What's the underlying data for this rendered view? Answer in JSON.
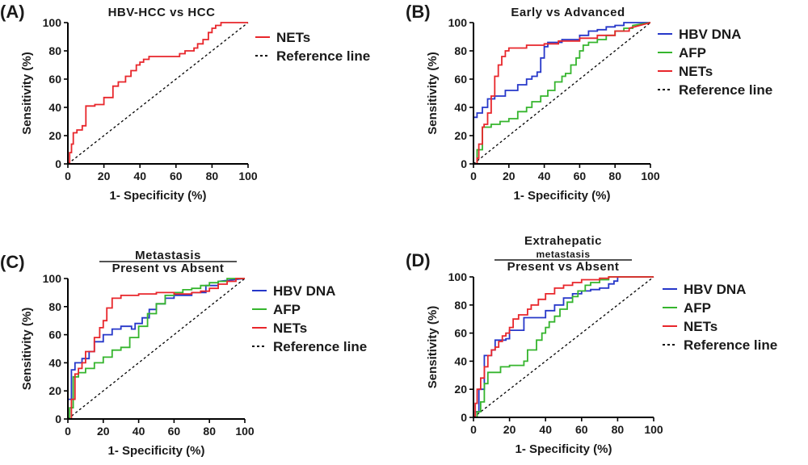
{
  "figure": {
    "colors": {
      "NETs": "#e8262b",
      "HBV DNA": "#2637c9",
      "AFP": "#35b52d",
      "Reference line": "#000000",
      "axis": "#000000"
    },
    "reference_line_name": "Reference line"
  },
  "chart_data": [
    {
      "panel_label": "(A)",
      "type": "line",
      "title": "HBV-HCC vs HCC",
      "title_lines": [
        "HBV-HCC vs HCC"
      ],
      "xlabel": "1- Specificity (%)",
      "ylabel": "Sensitivity (%)",
      "xlim": [
        0,
        100
      ],
      "ylim": [
        0,
        100
      ],
      "xticks": [
        0,
        20,
        40,
        60,
        80,
        100
      ],
      "yticks": [
        0,
        20,
        40,
        60,
        80,
        100
      ],
      "grid": false,
      "legend_position": "right",
      "series": [
        {
          "name": "NETs",
          "x": [
            0,
            1,
            1,
            2,
            2,
            3,
            3,
            5,
            5,
            8,
            8,
            10,
            10,
            15,
            15,
            20,
            20,
            25,
            25,
            28,
            28,
            32,
            32,
            35,
            35,
            38,
            38,
            40,
            40,
            42,
            42,
            45,
            45,
            50,
            55,
            60,
            62,
            62,
            65,
            65,
            70,
            70,
            72,
            72,
            75,
            75,
            78,
            78,
            80,
            80,
            82,
            82,
            85,
            85,
            100
          ],
          "y": [
            0,
            0,
            8,
            8,
            14,
            14,
            22,
            22,
            24,
            24,
            27,
            27,
            41,
            41,
            42,
            42,
            47,
            47,
            55,
            55,
            58,
            58,
            62,
            62,
            66,
            66,
            70,
            70,
            72,
            72,
            74,
            74,
            76,
            76,
            76,
            76,
            76,
            78,
            78,
            80,
            80,
            82,
            82,
            85,
            85,
            88,
            88,
            93,
            93,
            96,
            96,
            98,
            98,
            100,
            100
          ]
        }
      ]
    },
    {
      "panel_label": "(B)",
      "type": "line",
      "title": "Early vs Advanced",
      "title_lines": [
        "Early vs Advanced"
      ],
      "xlabel": "1- Specificity (%)",
      "ylabel": "Sensitivity (%)",
      "xlim": [
        0,
        100
      ],
      "ylim": [
        0,
        100
      ],
      "xticks": [
        0,
        20,
        40,
        60,
        80,
        100
      ],
      "yticks": [
        0,
        20,
        40,
        60,
        80,
        100
      ],
      "grid": false,
      "legend_position": "right",
      "series": [
        {
          "name": "HBV DNA",
          "x": [
            0,
            0,
            2,
            2,
            5,
            5,
            8,
            8,
            12,
            12,
            18,
            18,
            25,
            25,
            30,
            30,
            33,
            33,
            36,
            36,
            38,
            38,
            40,
            40,
            42,
            42,
            50,
            50,
            60,
            60,
            65,
            65,
            70,
            70,
            75,
            75,
            80,
            80,
            85,
            85,
            100
          ],
          "y": [
            0,
            33,
            33,
            36,
            36,
            40,
            40,
            46,
            46,
            48,
            48,
            52,
            52,
            56,
            56,
            60,
            60,
            62,
            62,
            65,
            65,
            75,
            75,
            83,
            83,
            86,
            86,
            88,
            88,
            91,
            91,
            94,
            94,
            95,
            95,
            97,
            97,
            98,
            98,
            100,
            100
          ]
        },
        {
          "name": "AFP",
          "x": [
            0,
            2,
            2,
            5,
            5,
            10,
            10,
            15,
            15,
            20,
            20,
            25,
            25,
            30,
            30,
            33,
            33,
            38,
            38,
            42,
            42,
            46,
            46,
            50,
            50,
            52,
            52,
            55,
            55,
            58,
            58,
            60,
            60,
            62,
            62,
            65,
            65,
            70,
            70,
            75,
            75,
            80,
            80,
            85,
            85,
            90,
            90,
            100
          ],
          "y": [
            0,
            0,
            10,
            10,
            26,
            26,
            28,
            28,
            30,
            30,
            32,
            32,
            37,
            37,
            40,
            40,
            44,
            44,
            48,
            48,
            52,
            52,
            58,
            58,
            62,
            62,
            64,
            64,
            70,
            70,
            75,
            75,
            80,
            80,
            84,
            84,
            86,
            86,
            88,
            88,
            91,
            91,
            94,
            94,
            96,
            96,
            98,
            100
          ]
        },
        {
          "name": "NETs",
          "x": [
            0,
            2,
            2,
            3,
            3,
            5,
            5,
            6,
            6,
            8,
            8,
            10,
            10,
            12,
            12,
            14,
            14,
            16,
            16,
            18,
            18,
            20,
            20,
            30,
            30,
            40,
            40,
            48,
            48,
            60,
            60,
            70,
            70,
            80,
            80,
            88,
            88,
            100
          ],
          "y": [
            0,
            0,
            4,
            4,
            14,
            14,
            26,
            26,
            28,
            28,
            36,
            36,
            48,
            48,
            62,
            62,
            70,
            70,
            76,
            76,
            80,
            80,
            82,
            82,
            84,
            84,
            85,
            85,
            87,
            87,
            89,
            89,
            91,
            91,
            94,
            94,
            96,
            100
          ]
        }
      ]
    },
    {
      "panel_label": "(C)",
      "type": "line",
      "title": "Metastasis Present vs Absent",
      "title_lines": [
        "Metastasis",
        "Present vs Absent"
      ],
      "xlabel": "1- Specificity (%)",
      "ylabel": "Sensitivity (%)",
      "xlim": [
        0,
        100
      ],
      "ylim": [
        0,
        100
      ],
      "xticks": [
        0,
        20,
        40,
        60,
        80,
        100
      ],
      "yticks": [
        0,
        20,
        40,
        60,
        80,
        100
      ],
      "grid": false,
      "legend_position": "right",
      "series": [
        {
          "name": "HBV DNA",
          "x": [
            0,
            0,
            2,
            2,
            4,
            4,
            8,
            8,
            12,
            12,
            15,
            15,
            20,
            20,
            25,
            25,
            30,
            30,
            36,
            36,
            38,
            38,
            42,
            42,
            46,
            46,
            50,
            50,
            55,
            55,
            60,
            60,
            70,
            70,
            78,
            78,
            85,
            85,
            100
          ],
          "y": [
            0,
            14,
            14,
            35,
            35,
            40,
            40,
            43,
            43,
            48,
            48,
            55,
            55,
            60,
            60,
            64,
            64,
            66,
            66,
            64,
            64,
            68,
            68,
            72,
            72,
            78,
            78,
            82,
            82,
            86,
            86,
            88,
            88,
            90,
            90,
            95,
            95,
            98,
            100
          ]
        },
        {
          "name": "AFP",
          "x": [
            0,
            1,
            1,
            3,
            3,
            6,
            6,
            10,
            10,
            15,
            15,
            20,
            20,
            25,
            25,
            30,
            30,
            35,
            35,
            40,
            40,
            45,
            45,
            50,
            50,
            55,
            55,
            60,
            60,
            65,
            65,
            70,
            70,
            75,
            75,
            80,
            80,
            85,
            85,
            90,
            90,
            100
          ],
          "y": [
            0,
            0,
            8,
            8,
            30,
            30,
            33,
            33,
            36,
            36,
            40,
            40,
            44,
            44,
            49,
            49,
            51,
            51,
            58,
            58,
            66,
            66,
            75,
            75,
            82,
            82,
            88,
            88,
            90,
            90,
            92,
            92,
            93,
            93,
            95,
            95,
            97,
            97,
            98,
            98,
            100,
            100
          ]
        },
        {
          "name": "NETs",
          "x": [
            0,
            2,
            2,
            4,
            4,
            6,
            6,
            8,
            8,
            10,
            10,
            15,
            15,
            18,
            18,
            20,
            20,
            22,
            22,
            25,
            25,
            30,
            30,
            40,
            40,
            50,
            50,
            60,
            60,
            70,
            70,
            75,
            75,
            80,
            80,
            85,
            85,
            90,
            90,
            95,
            95,
            100
          ],
          "y": [
            0,
            0,
            14,
            14,
            32,
            32,
            36,
            36,
            40,
            40,
            48,
            48,
            58,
            58,
            65,
            65,
            70,
            70,
            79,
            79,
            86,
            86,
            88,
            88,
            89,
            89,
            90,
            90,
            89,
            89,
            90,
            90,
            91,
            91,
            93,
            93,
            96,
            96,
            98,
            98,
            100,
            100
          ]
        }
      ]
    },
    {
      "panel_label": "(D)",
      "type": "line",
      "title": "Extrahepatic metastasis Present vs Absent",
      "title_lines": [
        "Extrahepatic",
        "metastasis",
        "Present vs Absent"
      ],
      "xlabel": "1- Specificity (%)",
      "ylabel": "Sensitivity (%)",
      "xlim": [
        0,
        100
      ],
      "ylim": [
        0,
        100
      ],
      "xticks": [
        0,
        20,
        40,
        60,
        80,
        100
      ],
      "yticks": [
        0,
        20,
        40,
        60,
        80,
        100
      ],
      "grid": false,
      "legend_position": "right",
      "series": [
        {
          "name": "HBV DNA",
          "x": [
            0,
            1,
            1,
            3,
            3,
            6,
            6,
            10,
            10,
            12,
            12,
            18,
            18,
            20,
            20,
            28,
            28,
            40,
            40,
            45,
            45,
            50,
            50,
            55,
            55,
            60,
            60,
            65,
            65,
            70,
            70,
            75,
            75,
            78,
            78,
            80,
            80,
            100
          ],
          "y": [
            0,
            0,
            4,
            4,
            20,
            20,
            44,
            44,
            48,
            48,
            55,
            55,
            56,
            56,
            62,
            62,
            71,
            71,
            76,
            76,
            80,
            80,
            85,
            85,
            88,
            88,
            90,
            90,
            91,
            91,
            92,
            92,
            95,
            95,
            97,
            97,
            100,
            100
          ]
        },
        {
          "name": "AFP",
          "x": [
            0,
            2,
            2,
            4,
            4,
            6,
            6,
            8,
            8,
            15,
            15,
            20,
            20,
            28,
            28,
            30,
            30,
            35,
            35,
            38,
            38,
            40,
            40,
            42,
            42,
            45,
            45,
            48,
            48,
            52,
            52,
            55,
            55,
            58,
            58,
            62,
            62,
            65,
            65,
            70,
            70,
            75,
            75,
            100
          ],
          "y": [
            0,
            0,
            4,
            4,
            11,
            11,
            24,
            24,
            32,
            32,
            36,
            36,
            37,
            37,
            40,
            40,
            48,
            48,
            55,
            55,
            60,
            60,
            64,
            64,
            68,
            68,
            72,
            72,
            77,
            77,
            82,
            82,
            86,
            86,
            90,
            90,
            94,
            94,
            96,
            96,
            98,
            98,
            100,
            100
          ]
        },
        {
          "name": "NETs",
          "x": [
            0,
            1,
            1,
            2,
            2,
            4,
            4,
            6,
            6,
            8,
            8,
            10,
            10,
            12,
            12,
            14,
            14,
            16,
            16,
            18,
            18,
            20,
            20,
            22,
            22,
            25,
            25,
            30,
            30,
            32,
            32,
            36,
            36,
            40,
            40,
            45,
            45,
            50,
            50,
            55,
            55,
            60,
            60,
            70,
            70,
            75,
            75,
            100
          ],
          "y": [
            0,
            0,
            10,
            10,
            20,
            20,
            28,
            28,
            36,
            36,
            44,
            44,
            48,
            48,
            50,
            50,
            54,
            54,
            58,
            58,
            60,
            60,
            64,
            64,
            70,
            70,
            73,
            73,
            77,
            77,
            80,
            80,
            84,
            84,
            88,
            88,
            92,
            92,
            94,
            94,
            96,
            96,
            98,
            98,
            99,
            99,
            100,
            100
          ]
        }
      ]
    }
  ]
}
